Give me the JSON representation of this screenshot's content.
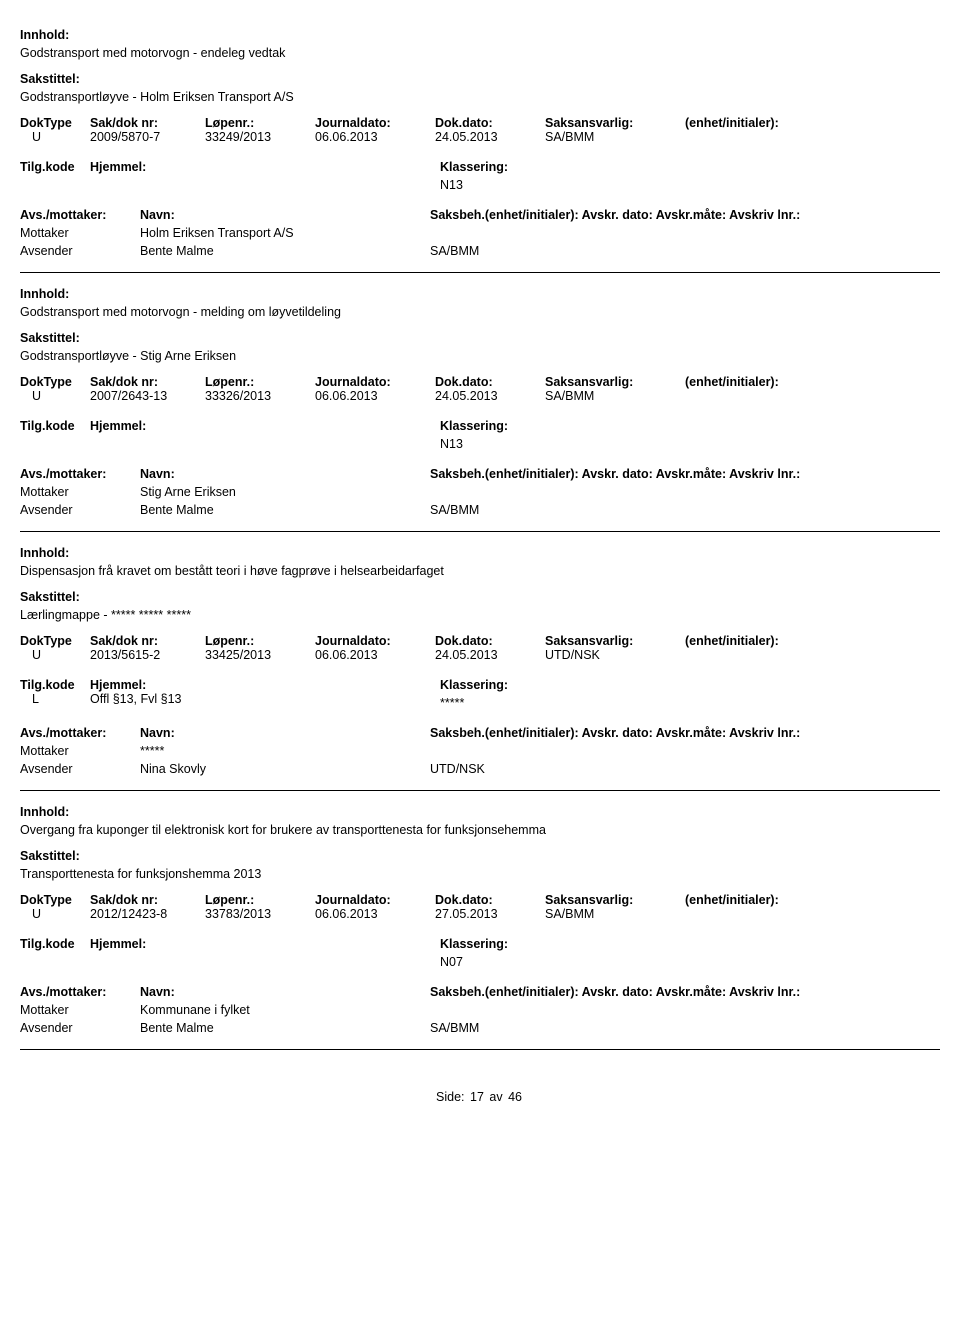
{
  "labels": {
    "innhold": "Innhold:",
    "sakstittel": "Sakstittel:",
    "doktype": "DokType",
    "saknr": "Sak/dok nr:",
    "lopenr": "Løpenr.:",
    "journaldato": "Journaldato:",
    "dokdato": "Dok.dato:",
    "saksansvarlig": "Saksansvarlig:",
    "enhet": "(enhet/initialer):",
    "tilgkode": "Tilg.kode",
    "hjemmel": "Hjemmel:",
    "klassering": "Klassering:",
    "avs_mottaker": "Avs./mottaker:",
    "navn": "Navn:",
    "saksbeh_rest": "Saksbeh.(enhet/initialer): Avskr. dato:  Avskr.måte:  Avskriv lnr.:",
    "mottaker": "Mottaker",
    "avsender": "Avsender",
    "side": "Side:",
    "av": "av"
  },
  "records": [
    {
      "content": "Godstransport med motorvogn - endeleg vedtak",
      "title": "Godstransportløyve - Holm Eriksen Transport A/S",
      "doktype": "U",
      "saknr": "2009/5870-7",
      "lopenr": "33249/2013",
      "jdato": "06.06.2013",
      "ddato": "24.05.2013",
      "saksans": "SA/BMM",
      "tilgkode_val": "",
      "hjemmel_val": "",
      "klassering": "N13",
      "parties": [
        {
          "role": "Mottaker",
          "name": "Holm Eriksen Transport A/S",
          "unit": ""
        },
        {
          "role": "Avsender",
          "name": "Bente Malme",
          "unit": "SA/BMM"
        }
      ]
    },
    {
      "content": "Godstransport med motorvogn - melding om løyvetildeling",
      "title": "Godstransportløyve - Stig Arne Eriksen",
      "doktype": "U",
      "saknr": "2007/2643-13",
      "lopenr": "33326/2013",
      "jdato": "06.06.2013",
      "ddato": "24.05.2013",
      "saksans": "SA/BMM",
      "tilgkode_val": "",
      "hjemmel_val": "",
      "klassering": "N13",
      "parties": [
        {
          "role": "Mottaker",
          "name": "Stig Arne Eriksen",
          "unit": ""
        },
        {
          "role": "Avsender",
          "name": "Bente Malme",
          "unit": "SA/BMM"
        }
      ]
    },
    {
      "content": "Dispensasjon frå kravet om bestått teori i høve fagprøve i helsearbeidarfaget",
      "title": "Lærlingmappe - ***** ***** *****",
      "doktype": "U",
      "saknr": "2013/5615-2",
      "lopenr": "33425/2013",
      "jdato": "06.06.2013",
      "ddato": "24.05.2013",
      "saksans": "UTD/NSK",
      "tilgkode_val": "L",
      "hjemmel_val": "Offl §13, Fvl §13",
      "klassering": "*****",
      "parties": [
        {
          "role": "Mottaker",
          "name": "*****",
          "unit": ""
        },
        {
          "role": "Avsender",
          "name": "Nina Skovly",
          "unit": "UTD/NSK"
        }
      ]
    },
    {
      "content": "Overgang fra kuponger til elektronisk kort for brukere av transporttenesta for funksjonsehemma",
      "title": "Transporttenesta for funksjonshemma 2013",
      "doktype": "U",
      "saknr": "2012/12423-8",
      "lopenr": "33783/2013",
      "jdato": "06.06.2013",
      "ddato": "27.05.2013",
      "saksans": "SA/BMM",
      "tilgkode_val": "",
      "hjemmel_val": "",
      "klassering": "N07",
      "parties": [
        {
          "role": "Mottaker",
          "name": "Kommunane i fylket",
          "unit": ""
        },
        {
          "role": "Avsender",
          "name": "Bente Malme",
          "unit": "SA/BMM"
        }
      ]
    }
  ],
  "footer": {
    "page": "17",
    "total": "46"
  }
}
